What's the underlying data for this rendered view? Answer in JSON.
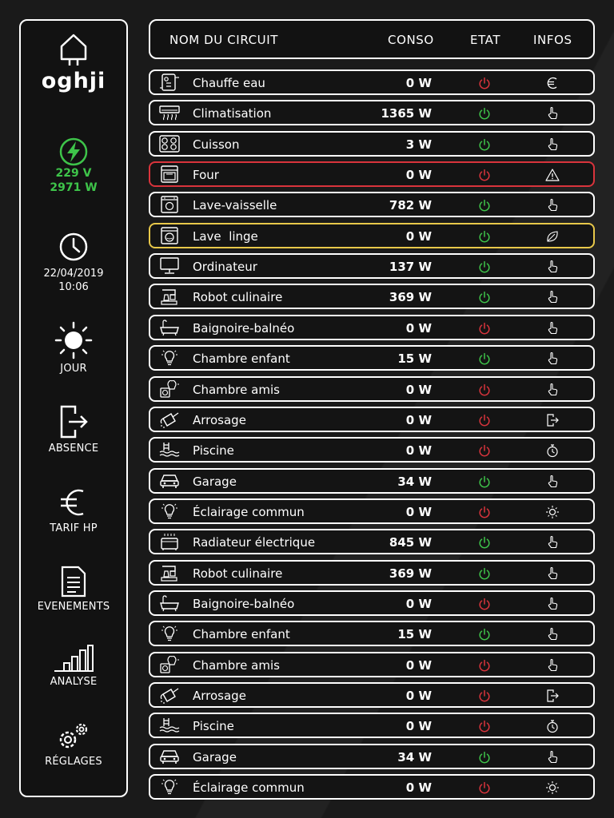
{
  "brand": "oghji",
  "power": {
    "voltage": "229 V",
    "watts": "2971 W"
  },
  "datetime": {
    "date": "22/04/2019",
    "time": "10:06"
  },
  "sidebar": {
    "mode": "JOUR",
    "absence": "ABSENCE",
    "tariff": "TARIF HP",
    "events": "EVENEMENTS",
    "analysis": "ANALYSE",
    "settings": "RÉGLAGES"
  },
  "table": {
    "headers": {
      "name": "NOM DU CIRCUIT",
      "conso": "CONSO",
      "state": "ETAT",
      "info": "INFOS"
    }
  },
  "colors": {
    "on": "#3ec44a",
    "off": "#d9343c",
    "alarm_border": "#d9343c",
    "warn_border": "#e8c84a"
  },
  "rows": [
    {
      "name": "Chauffe eau",
      "conso": "0 W",
      "state": "off",
      "info": "euro-icon",
      "icon": "water-heater-icon",
      "status": "normal"
    },
    {
      "name": "Climatisation",
      "conso": "1365 W",
      "state": "on",
      "info": "hand-pointer-icon",
      "icon": "air-conditioner-icon",
      "status": "normal"
    },
    {
      "name": "Cuisson",
      "conso": "3 W",
      "state": "on",
      "info": "hand-pointer-icon",
      "icon": "cooktop-icon",
      "status": "normal"
    },
    {
      "name": "Four",
      "conso": "0 W",
      "state": "off",
      "info": "warning-icon",
      "icon": "oven-icon",
      "status": "alarm"
    },
    {
      "name": "Lave-vaisselle",
      "conso": "782 W",
      "state": "on",
      "info": "hand-pointer-icon",
      "icon": "dishwasher-icon",
      "status": "normal"
    },
    {
      "name": "Lave  linge",
      "conso": "0 W",
      "state": "on",
      "info": "leaf-icon",
      "icon": "washing-machine-icon",
      "status": "warn"
    },
    {
      "name": "Ordinateur",
      "conso": "137 W",
      "state": "on",
      "info": "hand-pointer-icon",
      "icon": "computer-icon",
      "status": "normal"
    },
    {
      "name": "Robot culinaire",
      "conso": "369 W",
      "state": "on",
      "info": "hand-pointer-icon",
      "icon": "food-processor-icon",
      "status": "normal"
    },
    {
      "name": "Baignoire-balnéo",
      "conso": "0 W",
      "state": "off",
      "info": "hand-pointer-icon",
      "icon": "bathtub-icon",
      "status": "normal"
    },
    {
      "name": "Chambre enfant",
      "conso": "15 W",
      "state": "on",
      "info": "hand-pointer-icon",
      "icon": "lightbulb-icon",
      "status": "normal"
    },
    {
      "name": "Chambre amis",
      "conso": "0 W",
      "state": "off",
      "info": "hand-pointer-icon",
      "icon": "lamp-socket-icon",
      "status": "normal"
    },
    {
      "name": "Arrosage",
      "conso": "0 W",
      "state": "off",
      "info": "exit-icon",
      "icon": "watering-can-icon",
      "status": "normal"
    },
    {
      "name": "Piscine",
      "conso": "0 W",
      "state": "off",
      "info": "stopwatch-icon",
      "icon": "pool-icon",
      "status": "normal"
    },
    {
      "name": "Garage",
      "conso": "34 W",
      "state": "on",
      "info": "hand-pointer-icon",
      "icon": "car-icon",
      "status": "normal"
    },
    {
      "name": "Éclairage commun",
      "conso": "0 W",
      "state": "off",
      "info": "sun-icon",
      "icon": "lightbulb-icon",
      "status": "normal"
    },
    {
      "name": "Radiateur électrique",
      "conso": "845 W",
      "state": "on",
      "info": "hand-pointer-icon",
      "icon": "radiator-icon",
      "status": "normal"
    },
    {
      "name": "Robot culinaire",
      "conso": "369 W",
      "state": "on",
      "info": "hand-pointer-icon",
      "icon": "food-processor-icon",
      "status": "normal"
    },
    {
      "name": "Baignoire-balnéo",
      "conso": "0 W",
      "state": "off",
      "info": "hand-pointer-icon",
      "icon": "bathtub-icon",
      "status": "normal"
    },
    {
      "name": "Chambre enfant",
      "conso": "15 W",
      "state": "on",
      "info": "hand-pointer-icon",
      "icon": "lightbulb-icon",
      "status": "normal"
    },
    {
      "name": "Chambre amis",
      "conso": "0 W",
      "state": "off",
      "info": "hand-pointer-icon",
      "icon": "lamp-socket-icon",
      "status": "normal"
    },
    {
      "name": "Arrosage",
      "conso": "0 W",
      "state": "off",
      "info": "exit-icon",
      "icon": "watering-can-icon",
      "status": "normal"
    },
    {
      "name": "Piscine",
      "conso": "0 W",
      "state": "off",
      "info": "stopwatch-icon",
      "icon": "pool-icon",
      "status": "normal"
    },
    {
      "name": "Garage",
      "conso": "34 W",
      "state": "on",
      "info": "hand-pointer-icon",
      "icon": "car-icon",
      "status": "normal"
    },
    {
      "name": "Éclairage commun",
      "conso": "0 W",
      "state": "off",
      "info": "sun-icon",
      "icon": "lightbulb-icon",
      "status": "normal"
    }
  ]
}
